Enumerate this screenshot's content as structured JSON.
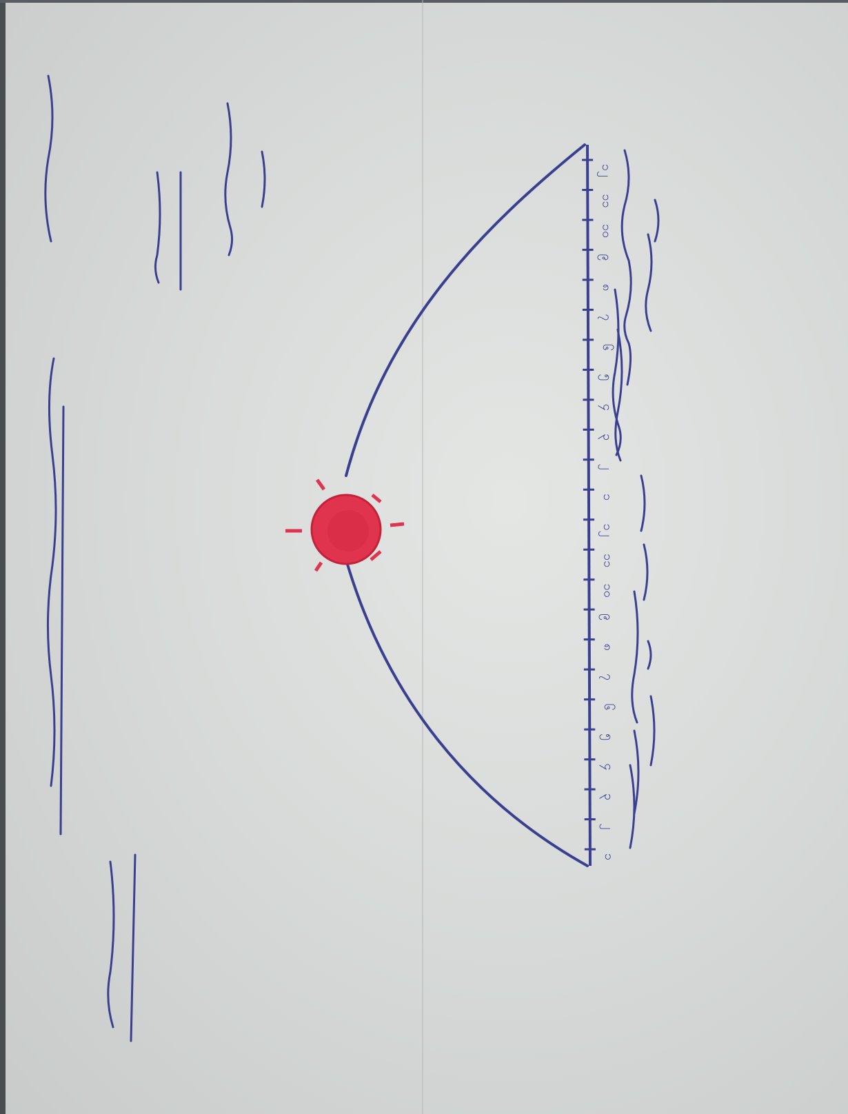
{
  "photo": {
    "description": "",
    "ink_color": "#3a3f8f",
    "marker_color": "#e0334d"
  },
  "ruler": {
    "tick_labels": [
      "၁",
      "၂",
      "၃",
      "၄",
      "၅",
      "၆",
      "၇",
      "၈",
      "၉",
      "၁၀",
      "၁၁",
      "၁၂",
      "၁",
      "၂",
      "၃",
      "၄",
      "၅",
      "၆",
      "၇",
      "၈",
      "၉",
      "၁၀",
      "၁၁",
      "၁၂"
    ]
  }
}
